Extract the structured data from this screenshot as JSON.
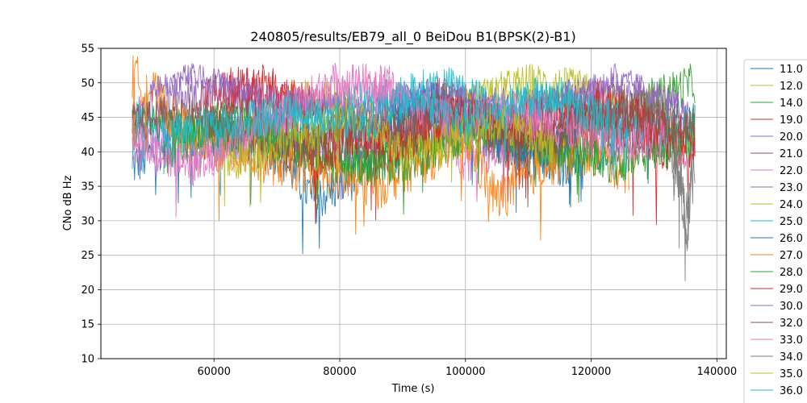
{
  "chart_data": {
    "type": "line",
    "title": "240805/results/EB79_all_0 BeiDou B1(BPSK(2)-B1)",
    "xlabel": "Time (s)",
    "ylabel": "CNo dB Hz",
    "xlim": [
      42000,
      141500
    ],
    "ylim": [
      10,
      55
    ],
    "xticks": [
      60000,
      80000,
      100000,
      120000,
      140000
    ],
    "yticks": [
      10,
      15,
      20,
      25,
      30,
      35,
      40,
      45,
      50,
      55
    ],
    "grid": true,
    "legend_position": "right",
    "series": [
      {
        "name": "11.0",
        "color": "#1f77b4",
        "points": [
          [
            47000,
            38
          ],
          [
            52000,
            41
          ],
          [
            60000,
            43
          ],
          [
            70000,
            40
          ],
          [
            76000,
            33
          ],
          [
            85000,
            38
          ],
          [
            95000,
            44
          ],
          [
            105000,
            42
          ],
          [
            115000,
            38
          ],
          [
            124000,
            42
          ],
          [
            133000,
            44
          ],
          [
            136500,
            45
          ]
        ],
        "mean": 42,
        "spread": 3.5
      },
      {
        "name": "12.0",
        "color": "#bcbd22",
        "points": [
          [
            60000,
            40
          ],
          [
            68000,
            45
          ],
          [
            75000,
            48
          ],
          [
            80000,
            47
          ],
          [
            88000,
            44
          ],
          [
            95000,
            42
          ],
          [
            100000,
            47
          ],
          [
            110000,
            50
          ],
          [
            118000,
            49
          ],
          [
            126000,
            46
          ],
          [
            132000,
            47
          ]
        ],
        "mean": 47,
        "spread": 3
      },
      {
        "name": "14.0",
        "color": "#2ca02c",
        "points": [
          [
            47000,
            44
          ],
          [
            53000,
            45
          ],
          [
            58000,
            43
          ],
          [
            64000,
            46
          ],
          [
            70000,
            41
          ],
          [
            80000,
            38
          ],
          [
            92000,
            42
          ],
          [
            104000,
            43
          ],
          [
            114000,
            40
          ],
          [
            124000,
            44
          ],
          [
            130000,
            48
          ],
          [
            136500,
            50
          ]
        ],
        "mean": 44,
        "spread": 3
      },
      {
        "name": "19.0",
        "color": "#d62728",
        "points": [
          [
            58000,
            47
          ],
          [
            66000,
            50
          ],
          [
            72000,
            48
          ],
          [
            80000,
            44
          ],
          [
            88000,
            40
          ],
          [
            96000,
            48
          ],
          [
            104000,
            44
          ],
          [
            112000,
            42
          ],
          [
            122000,
            44
          ],
          [
            130000,
            40
          ],
          [
            136500,
            41
          ]
        ],
        "mean": 46,
        "spread": 3.5
      },
      {
        "name": "20.0",
        "color": "#9467bd",
        "points": [
          [
            47000,
            46
          ],
          [
            54000,
            48
          ],
          [
            62000,
            49
          ],
          [
            70000,
            44
          ],
          [
            80000,
            40
          ],
          [
            90000,
            44
          ],
          [
            98000,
            47
          ],
          [
            108000,
            44
          ],
          [
            116000,
            47
          ],
          [
            124000,
            50
          ],
          [
            132000,
            46
          ],
          [
            136500,
            44
          ]
        ],
        "mean": 47,
        "spread": 3
      },
      {
        "name": "21.0",
        "color": "#8c564b",
        "points": [
          [
            58000,
            42
          ],
          [
            66000,
            45
          ],
          [
            74000,
            40
          ],
          [
            84000,
            44
          ],
          [
            92000,
            47
          ],
          [
            100000,
            44
          ],
          [
            108000,
            40
          ],
          [
            116000,
            45
          ],
          [
            124000,
            47
          ],
          [
            132000,
            44
          ]
        ],
        "mean": 44,
        "spread": 3.5
      },
      {
        "name": "22.0",
        "color": "#e377c2",
        "points": [
          [
            47000,
            40
          ],
          [
            52000,
            42
          ],
          [
            56000,
            38
          ],
          [
            62000,
            41
          ],
          [
            72000,
            46
          ],
          [
            80000,
            50
          ],
          [
            88000,
            49
          ],
          [
            96000,
            43
          ],
          [
            100000,
            39
          ],
          [
            110000,
            43
          ],
          [
            120000,
            47
          ],
          [
            128000,
            43
          ],
          [
            136500,
            40
          ]
        ],
        "mean": 44,
        "spread": 3.5
      },
      {
        "name": "23.0",
        "color": "#7f7f7f",
        "points": [
          [
            128000,
            46
          ],
          [
            132000,
            44
          ],
          [
            135000,
            30
          ],
          [
            136500,
            38
          ]
        ],
        "mean": 42,
        "spread": 4
      },
      {
        "name": "24.0",
        "color": "#bcbd22",
        "points": [
          [
            100000,
            48
          ],
          [
            106000,
            49
          ],
          [
            112000,
            47
          ],
          [
            118000,
            48
          ]
        ],
        "mean": 48,
        "spread": 2
      },
      {
        "name": "25.0",
        "color": "#17becf",
        "points": [
          [
            47000,
            45
          ],
          [
            54000,
            43
          ],
          [
            62000,
            41
          ],
          [
            74000,
            44
          ],
          [
            82000,
            47
          ],
          [
            90000,
            48
          ],
          [
            96000,
            50
          ],
          [
            106000,
            46
          ],
          [
            116000,
            48
          ],
          [
            124000,
            45
          ],
          [
            132000,
            42
          ],
          [
            136500,
            44
          ]
        ],
        "mean": 46,
        "spread": 3
      },
      {
        "name": "26.0",
        "color": "#1f77b4",
        "points": [
          [
            88000,
            45
          ],
          [
            94000,
            47
          ],
          [
            100000,
            45
          ],
          [
            106000,
            42
          ],
          [
            112000,
            38
          ],
          [
            118000,
            44
          ]
        ],
        "mean": 44,
        "spread": 3.5
      },
      {
        "name": "27.0",
        "color": "#ff7f0e",
        "points": [
          [
            47000,
            51
          ],
          [
            50000,
            49
          ],
          [
            54000,
            44
          ],
          [
            58000,
            42
          ],
          [
            62000,
            40
          ],
          [
            86000,
            35
          ],
          [
            92000,
            38
          ],
          [
            100000,
            42
          ],
          [
            105000,
            33
          ],
          [
            112000,
            38
          ],
          [
            120000,
            40
          ],
          [
            126000,
            37
          ]
        ],
        "mean": 42,
        "spread": 3.5
      },
      {
        "name": "28.0",
        "color": "#2ca02c",
        "points": [
          [
            52000,
            40
          ],
          [
            60000,
            44
          ],
          [
            70000,
            42
          ],
          [
            78000,
            40
          ],
          [
            86000,
            38
          ],
          [
            94000,
            40
          ],
          [
            102000,
            44
          ],
          [
            108000,
            42
          ],
          [
            116000,
            40
          ],
          [
            126000,
            38
          ],
          [
            136500,
            43
          ]
        ],
        "mean": 41,
        "spread": 3.5
      },
      {
        "name": "29.0",
        "color": "#d62728",
        "points": [
          [
            62000,
            48
          ],
          [
            68000,
            49
          ],
          [
            74000,
            46
          ],
          [
            76000,
            38
          ],
          [
            82000,
            43
          ],
          [
            90000,
            41
          ],
          [
            98000,
            46
          ],
          [
            106000,
            43
          ],
          [
            114000,
            45
          ],
          [
            122000,
            47
          ],
          [
            130000,
            43
          ],
          [
            136500,
            42
          ]
        ],
        "mean": 45,
        "spread": 3.5
      },
      {
        "name": "30.0",
        "color": "#9467bd",
        "points": [
          [
            50000,
            49
          ],
          [
            56000,
            51
          ],
          [
            62000,
            50
          ],
          [
            70000,
            48
          ],
          [
            78000,
            47
          ],
          [
            86000,
            46
          ],
          [
            94000,
            49
          ],
          [
            102000,
            48
          ],
          [
            110000,
            47
          ],
          [
            118000,
            49
          ],
          [
            126000,
            50
          ],
          [
            134000,
            47
          ]
        ],
        "mean": 49,
        "spread": 2
      },
      {
        "name": "32.0",
        "color": "#8c564b",
        "points": [
          [
            47000,
            44
          ],
          [
            56000,
            46
          ],
          [
            64000,
            42
          ],
          [
            72000,
            40
          ],
          [
            80000,
            44
          ],
          [
            88000,
            42
          ],
          [
            96000,
            47
          ],
          [
            104000,
            45
          ],
          [
            112000,
            42
          ],
          [
            120000,
            44
          ],
          [
            128000,
            46
          ],
          [
            136500,
            43
          ]
        ],
        "mean": 44,
        "spread": 3
      },
      {
        "name": "33.0",
        "color": "#e377c2",
        "points": [
          [
            47000,
            42
          ],
          [
            54000,
            38
          ],
          [
            60000,
            40
          ],
          [
            68000,
            44
          ],
          [
            76000,
            48
          ],
          [
            84000,
            50
          ],
          [
            92000,
            47
          ],
          [
            100000,
            44
          ],
          [
            108000,
            46
          ],
          [
            116000,
            43
          ],
          [
            124000,
            41
          ],
          [
            132000,
            42
          ]
        ],
        "mean": 44,
        "spread": 3
      },
      {
        "name": "34.0",
        "color": "#7f7f7f",
        "points": [
          [
            133000,
            40
          ],
          [
            134500,
            36
          ],
          [
            135200,
            24
          ],
          [
            136000,
            42
          ]
        ],
        "mean": 38,
        "spread": 4
      },
      {
        "name": "35.0",
        "color": "#bcbd22",
        "points": [
          [
            62000,
            38
          ],
          [
            72000,
            42
          ],
          [
            82000,
            45
          ],
          [
            90000,
            40
          ],
          [
            98000,
            42
          ],
          [
            106000,
            44
          ],
          [
            114000,
            41
          ]
        ],
        "mean": 42,
        "spread": 3
      },
      {
        "name": "36.0",
        "color": "#17becf",
        "points": [
          [
            52000,
            42
          ],
          [
            60000,
            44
          ],
          [
            72000,
            46
          ],
          [
            84000,
            44
          ],
          [
            92000,
            48
          ],
          [
            100000,
            44
          ],
          [
            110000,
            48
          ],
          [
            118000,
            46
          ],
          [
            126000,
            44
          ]
        ],
        "mean": 45,
        "spread": 3
      }
    ]
  }
}
